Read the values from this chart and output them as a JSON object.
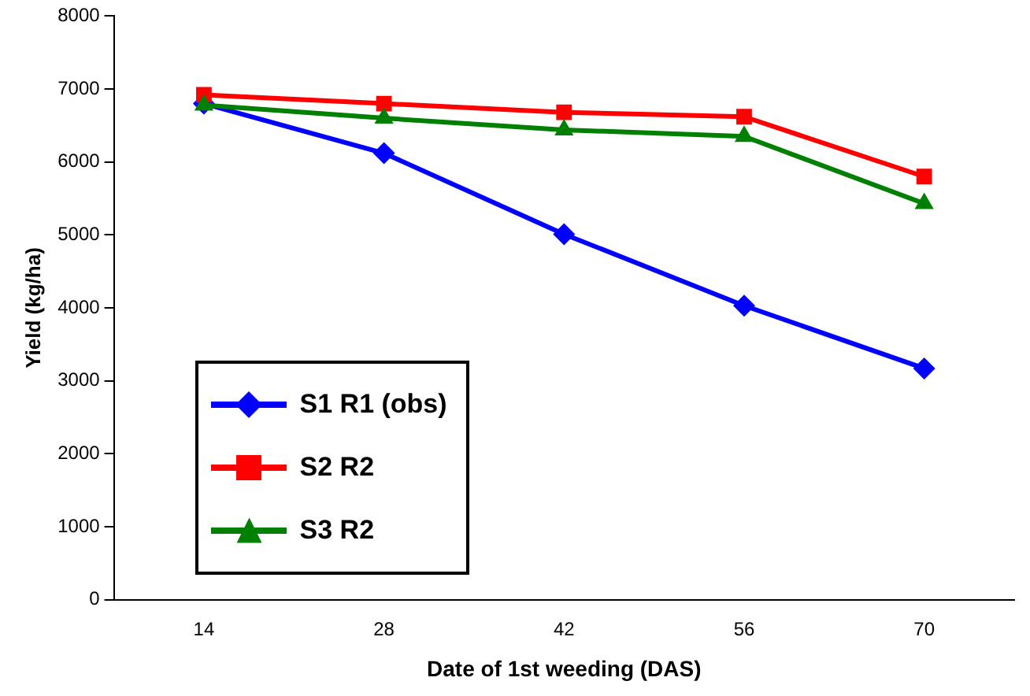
{
  "chart_data": {
    "type": "line",
    "xlabel": "Date of 1st weeding (DAS)",
    "ylabel": "Yield (kg/ha)",
    "categories": [
      "14",
      "28",
      "42",
      "56",
      "70"
    ],
    "series": [
      {
        "name": "S1 R1 (obs)",
        "color": "#0000ff",
        "marker": "diamond",
        "values": [
          6800,
          6120,
          5010,
          4030,
          3170
        ]
      },
      {
        "name": "S2 R2",
        "color": "#ff0000",
        "marker": "square",
        "values": [
          6920,
          6800,
          6680,
          6620,
          5800
        ]
      },
      {
        "name": "S3 R2",
        "color": "#008000",
        "marker": "triangle",
        "values": [
          6780,
          6600,
          6440,
          6350,
          5430
        ]
      }
    ],
    "ylim": [
      0,
      8000
    ],
    "yticks": [
      0,
      1000,
      2000,
      3000,
      4000,
      5000,
      6000,
      7000,
      8000
    ],
    "grid": false,
    "legend": "bottom left",
    "line_style": "solid"
  }
}
